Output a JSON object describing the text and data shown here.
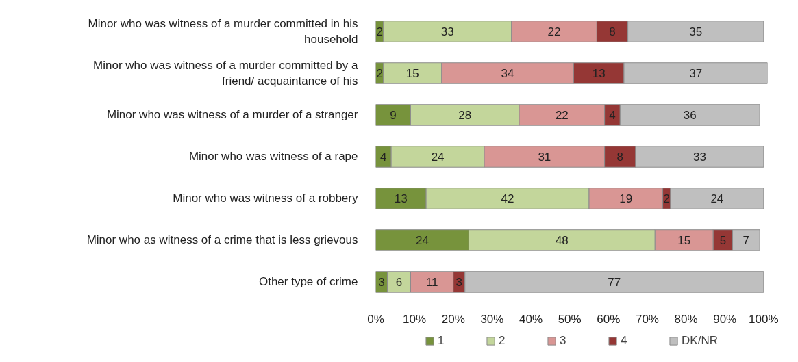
{
  "chart_data": {
    "type": "bar",
    "orientation": "horizontal",
    "stacked": true,
    "categories": [
      "Minor who was witness of a murder committed in his household",
      "Minor who was witness of a murder committed by a friend/ acquaintance of his",
      "Minor who was witness of a murder of a stranger",
      "Minor who was witness of a rape",
      "Minor who was witness of a robbery",
      "Minor who as witness of a crime that is less grievous",
      "Other type of crime"
    ],
    "series": [
      {
        "name": "1",
        "color": "#77933c",
        "values": [
          2,
          2,
          9,
          4,
          13,
          24,
          3
        ]
      },
      {
        "name": "2",
        "color": "#c3d69b",
        "values": [
          33,
          15,
          28,
          24,
          42,
          48,
          6
        ]
      },
      {
        "name": "3",
        "color": "#d99694",
        "values": [
          22,
          34,
          22,
          31,
          19,
          15,
          11
        ]
      },
      {
        "name": "4",
        "color": "#953735",
        "values": [
          8,
          13,
          4,
          8,
          2,
          5,
          3
        ]
      },
      {
        "name": "DK/NR",
        "color": "#bfbfbf",
        "values": [
          35,
          37,
          36,
          33,
          24,
          7,
          77
        ]
      }
    ],
    "xlim": [
      0,
      101
    ],
    "xticks": [
      {
        "value": 0,
        "label": "0%"
      },
      {
        "value": 10,
        "label": "10%"
      },
      {
        "value": 20,
        "label": "20%"
      },
      {
        "value": 30,
        "label": "30%"
      },
      {
        "value": 40,
        "label": "40%"
      },
      {
        "value": 50,
        "label": "50%"
      },
      {
        "value": 60,
        "label": "60%"
      },
      {
        "value": 70,
        "label": "70%"
      },
      {
        "value": 80,
        "label": "80%"
      },
      {
        "value": 90,
        "label": "90%"
      },
      {
        "value": 100,
        "label": "100%"
      }
    ],
    "data_labels": true,
    "legend": "bottom",
    "grid": false
  }
}
